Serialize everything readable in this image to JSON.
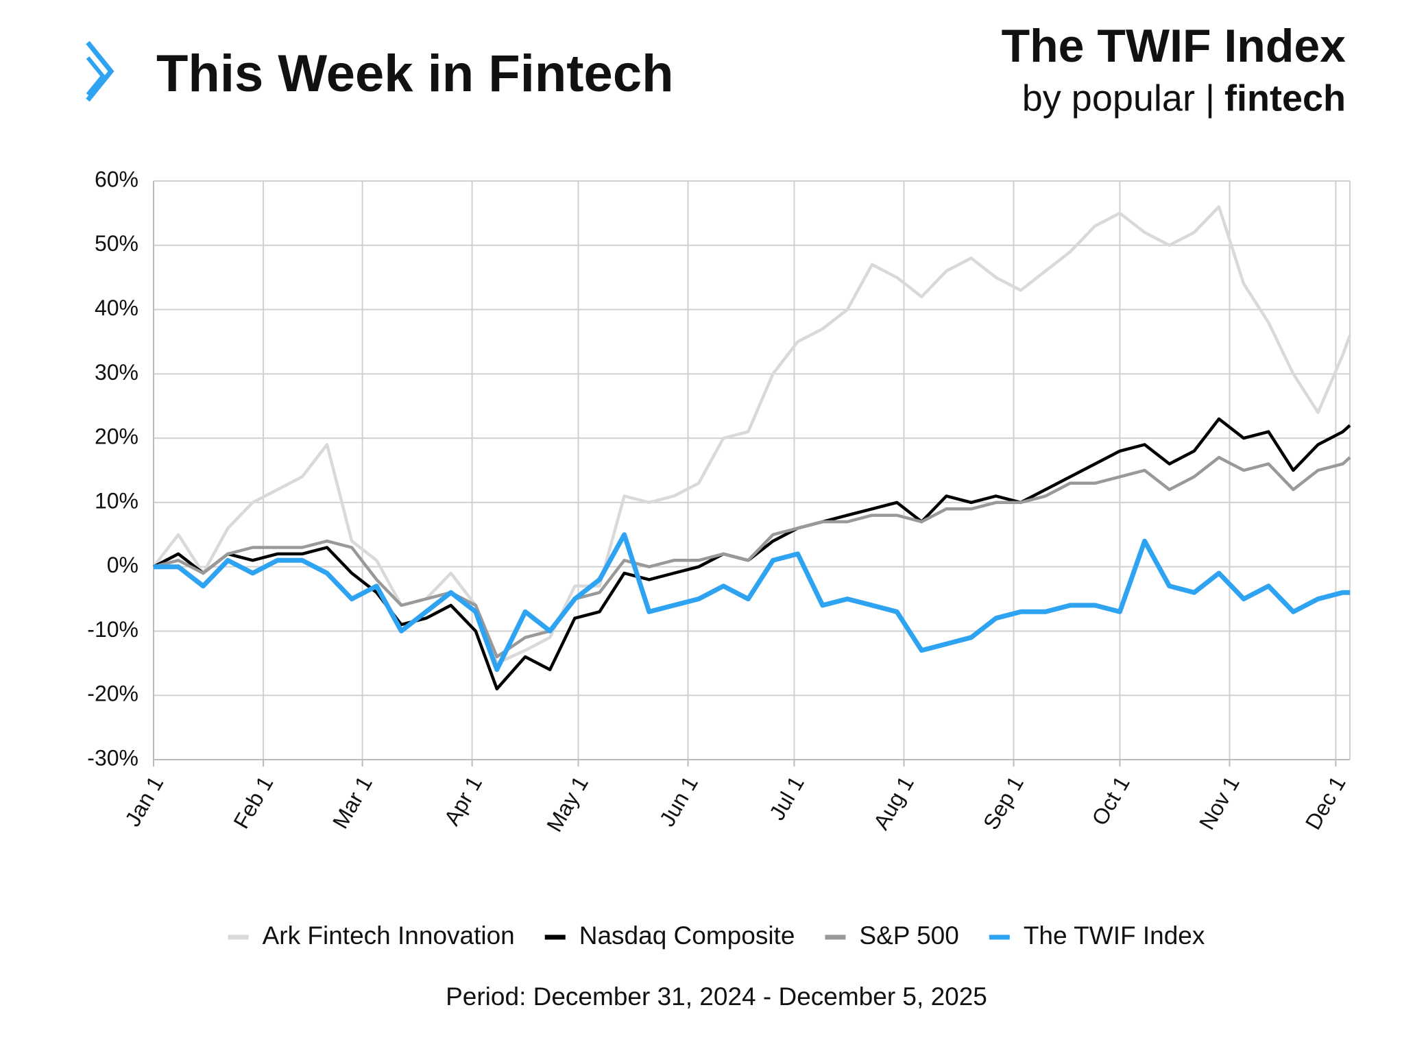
{
  "header": {
    "brand": "This Week in Fintech",
    "index_title": "The TWIF Index",
    "byline": "by popular |",
    "byline_brand": "fintech"
  },
  "chart_data": {
    "type": "line",
    "caption": "Period: December 31, 2024 - December 5, 2025",
    "x": [
      "01-01",
      "01-08",
      "01-15",
      "01-22",
      "01-29",
      "02-05",
      "02-12",
      "02-19",
      "02-26",
      "03-05",
      "03-12",
      "03-19",
      "03-26",
      "04-02",
      "04-08",
      "04-16",
      "04-23",
      "04-30",
      "05-07",
      "05-14",
      "05-21",
      "05-28",
      "06-04",
      "06-11",
      "06-18",
      "06-25",
      "07-02",
      "07-09",
      "07-16",
      "07-23",
      "07-30",
      "08-06",
      "08-13",
      "08-20",
      "08-27",
      "09-03",
      "09-10",
      "09-17",
      "09-24",
      "10-01",
      "10-08",
      "10-15",
      "10-22",
      "10-29",
      "11-05",
      "11-12",
      "11-19",
      "11-26",
      "12-03",
      "12-05"
    ],
    "series": [
      {
        "name": "Ark Fintech Innovation",
        "color": "#d9d9d9",
        "values": [
          0,
          5,
          -1,
          6,
          10,
          12,
          14,
          19,
          4,
          1,
          -6,
          -5,
          -1,
          -6,
          -15,
          -13,
          -11,
          -3,
          -3,
          11,
          10,
          11,
          13,
          20,
          21,
          30,
          35,
          37,
          40,
          47,
          45,
          42,
          46,
          48,
          45,
          43,
          46,
          49,
          53,
          55,
          52,
          50,
          52,
          56,
          44,
          38,
          30,
          24,
          33,
          36
        ]
      },
      {
        "name": "Nasdaq Composite",
        "color": "#000000",
        "values": [
          0,
          2,
          -1,
          2,
          1,
          2,
          2,
          3,
          -1,
          -4,
          -9,
          -8,
          -6,
          -10,
          -19,
          -14,
          -16,
          -8,
          -7,
          -1,
          -2,
          -1,
          0,
          2,
          1,
          4,
          6,
          7,
          8,
          9,
          10,
          7,
          11,
          10,
          11,
          10,
          12,
          14,
          16,
          18,
          19,
          16,
          18,
          23,
          20,
          21,
          15,
          19,
          21,
          22
        ]
      },
      {
        "name": "S&P 500",
        "color": "#999999",
        "values": [
          0,
          1,
          -1,
          2,
          3,
          3,
          3,
          4,
          3,
          -2,
          -6,
          -5,
          -4,
          -6,
          -14,
          -11,
          -10,
          -5,
          -4,
          1,
          0,
          1,
          1,
          2,
          1,
          5,
          6,
          7,
          7,
          8,
          8,
          7,
          9,
          9,
          10,
          10,
          11,
          13,
          13,
          14,
          15,
          12,
          14,
          17,
          15,
          16,
          12,
          15,
          16,
          17
        ]
      },
      {
        "name": "The TWIF Index",
        "color": "#2ea3f2",
        "values": [
          0,
          0,
          -3,
          1,
          -1,
          1,
          1,
          -1,
          -5,
          -3,
          -10,
          -7,
          -4,
          -7,
          -16,
          -7,
          -10,
          -5,
          -2,
          5,
          -7,
          -6,
          -5,
          -3,
          -5,
          1,
          2,
          -6,
          -5,
          -6,
          -7,
          -13,
          -12,
          -11,
          -8,
          -7,
          -7,
          -6,
          -6,
          -7,
          4,
          -3,
          -4,
          -1,
          -5,
          -3,
          -7,
          -5,
          -4,
          -4
        ]
      }
    ],
    "xlim": [
      "01-01",
      "12-05"
    ],
    "xticks": [
      {
        "value": "01-01",
        "label": "Jan 1"
      },
      {
        "value": "02-01",
        "label": "Feb 1"
      },
      {
        "value": "03-01",
        "label": "Mar 1"
      },
      {
        "value": "04-01",
        "label": "Apr 1"
      },
      {
        "value": "05-01",
        "label": "May 1"
      },
      {
        "value": "06-01",
        "label": "Jun 1"
      },
      {
        "value": "07-01",
        "label": "Jul 1"
      },
      {
        "value": "08-01",
        "label": "Aug 1"
      },
      {
        "value": "09-01",
        "label": "Sep 1"
      },
      {
        "value": "10-01",
        "label": "Oct 1"
      },
      {
        "value": "11-01",
        "label": "Nov 1"
      },
      {
        "value": "12-01",
        "label": "Dec 1"
      }
    ],
    "ylim": [
      -30,
      60
    ],
    "yticks": [
      {
        "value": -30,
        "label": "-30%"
      },
      {
        "value": -20,
        "label": "-20%"
      },
      {
        "value": -10,
        "label": "-10%"
      },
      {
        "value": 0,
        "label": "0%"
      },
      {
        "value": 10,
        "label": "10%"
      },
      {
        "value": 20,
        "label": "20%"
      },
      {
        "value": 30,
        "label": "30%"
      },
      {
        "value": 40,
        "label": "40%"
      },
      {
        "value": 50,
        "label": "50%"
      },
      {
        "value": 60,
        "label": "60%"
      }
    ],
    "grid": true,
    "legend": "bottom"
  }
}
